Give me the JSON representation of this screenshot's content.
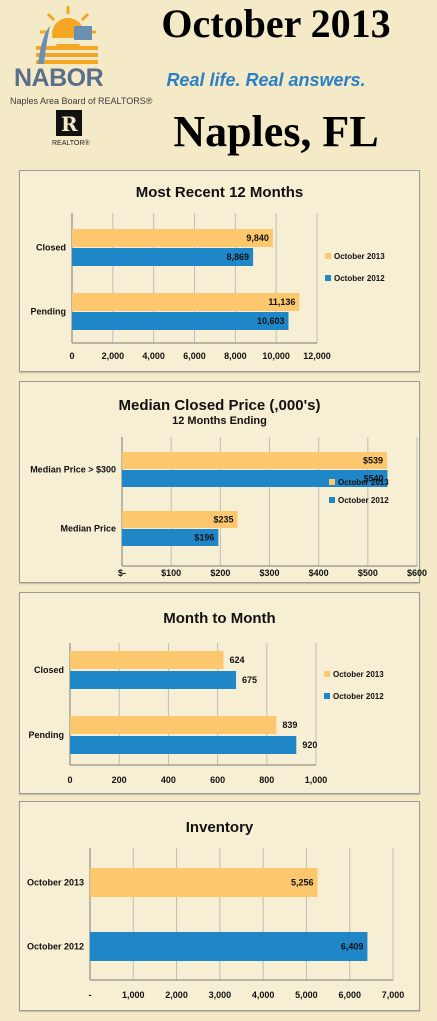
{
  "header": {
    "title": "October 2013",
    "tagline": "Real life. Real answers.",
    "location": "Naples, FL",
    "logo_name": "NABOR",
    "logo_subtitle": "Naples Area Board of REALTORS®",
    "realtor_mark": "R",
    "realtor_label": "REALTOR®"
  },
  "colors": {
    "series_2013": "#fdc76d",
    "series_2012": "#1f87c8",
    "background": "#f4eac8",
    "title_blue": "#2b7fc4"
  },
  "chart_data": [
    {
      "type": "bar",
      "orientation": "horizontal",
      "title": "Most Recent 12 Months",
      "subtitle": "",
      "categories": [
        "Closed",
        "Pending"
      ],
      "series": [
        {
          "name": "October 2013",
          "values": [
            9840,
            11136
          ],
          "labels": [
            "9,840",
            "11,136"
          ]
        },
        {
          "name": "October 2012",
          "values": [
            8869,
            10603
          ],
          "labels": [
            "8,869",
            "10,603"
          ]
        }
      ],
      "xlim": [
        0,
        12000
      ],
      "ticks": [
        0,
        2000,
        4000,
        6000,
        8000,
        10000,
        12000
      ],
      "tick_labels": [
        "0",
        "2,000",
        "4,000",
        "6,000",
        "8,000",
        "10,000",
        "12,000"
      ],
      "grid": true,
      "legend": "right",
      "label_position": "inside"
    },
    {
      "type": "bar",
      "orientation": "horizontal",
      "title": "Median Closed Price (,000's)",
      "subtitle": "12 Months Ending",
      "categories": [
        "Median Price > $300",
        "Median Price"
      ],
      "series": [
        {
          "name": "October 2013",
          "values": [
            539,
            235
          ],
          "labels": [
            "$539",
            "$235"
          ]
        },
        {
          "name": "October 2012",
          "values": [
            540,
            196
          ],
          "labels": [
            "$540",
            "$196"
          ]
        }
      ],
      "xlim": [
        0,
        600
      ],
      "ticks": [
        0,
        100,
        200,
        300,
        400,
        500,
        600
      ],
      "tick_labels": [
        "$-",
        "$100",
        "$200",
        "$300",
        "$400",
        "$500",
        "$600"
      ],
      "grid": true,
      "legend": "right",
      "label_position": "inside"
    },
    {
      "type": "bar",
      "orientation": "horizontal",
      "title": "Month to Month",
      "subtitle": "",
      "categories": [
        "Closed",
        "Pending"
      ],
      "series": [
        {
          "name": "October 2013",
          "values": [
            624,
            839
          ],
          "labels": [
            "624",
            "839"
          ]
        },
        {
          "name": "October 2012",
          "values": [
            675,
            920
          ],
          "labels": [
            "675",
            "920"
          ]
        }
      ],
      "xlim": [
        0,
        1000
      ],
      "ticks": [
        0,
        200,
        400,
        600,
        800,
        1000
      ],
      "tick_labels": [
        "0",
        "200",
        "400",
        "600",
        "800",
        "1,000"
      ],
      "grid": true,
      "legend": "right",
      "label_position": "outside"
    },
    {
      "type": "bar",
      "orientation": "horizontal",
      "title": "Inventory",
      "subtitle": "",
      "categories": [
        "October 2013",
        "October 2012"
      ],
      "series": [
        {
          "name": "",
          "values": [
            5256,
            6409
          ],
          "labels": [
            "5,256",
            "6,409"
          ]
        }
      ],
      "xlim": [
        0,
        7000
      ],
      "ticks": [
        0,
        1000,
        2000,
        3000,
        4000,
        5000,
        6000,
        7000
      ],
      "tick_labels": [
        "-",
        "1,000",
        "2,000",
        "3,000",
        "4,000",
        "5,000",
        "6,000",
        "7,000"
      ],
      "grid": true,
      "legend": "none",
      "label_position": "inside"
    }
  ]
}
